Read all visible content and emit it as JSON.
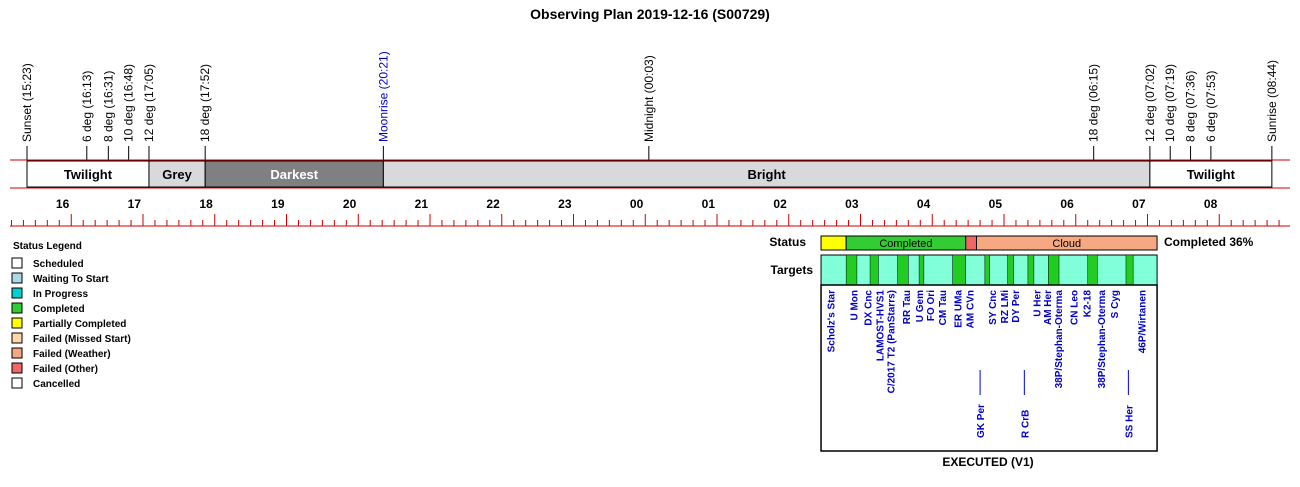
{
  "title": "Observing Plan 2019-12-16 (S00729)",
  "colors": {
    "red_line": "#cc0000",
    "twilight": "#ffffff",
    "grey": "#d9d9d9",
    "darkest": "#808080",
    "bright": "#d9d9d9",
    "moonrise_text": "#0000cc",
    "target_text": "#0000cc",
    "targets_band": "#80ffd9",
    "status_yellow": "#ffff00",
    "status_completed": "#33cc33",
    "status_cloud": "#f5a882",
    "status_other": "#ee6666",
    "target_bar": "#22cc22"
  },
  "events": [
    {
      "label": "Sunset (15:23)",
      "time": "15:23"
    },
    {
      "label": "6 deg (16:13)",
      "time": "16:13"
    },
    {
      "label": "8 deg (16:31)",
      "time": "16:31"
    },
    {
      "label": "10 deg (16:48)",
      "time": "16:48"
    },
    {
      "label": "12 deg (17:05)",
      "time": "17:05"
    },
    {
      "label": "18 deg (17:52)",
      "time": "17:52"
    },
    {
      "label": "Moonrise (20:21)",
      "time": "20:21",
      "highlight": true
    },
    {
      "label": "Midnight (00:03)",
      "time": "00:03"
    },
    {
      "label": "18 deg (06:15)",
      "time": "06:15"
    },
    {
      "label": "12 deg (07:02)",
      "time": "07:02"
    },
    {
      "label": "10 deg (07:19)",
      "time": "07:19"
    },
    {
      "label": "8 deg (07:36)",
      "time": "07:36"
    },
    {
      "label": "6 deg (07:53)",
      "time": "07:53"
    },
    {
      "label": "Sunrise (08:44)",
      "time": "08:44"
    }
  ],
  "bands": [
    {
      "label": "Twilight",
      "start": "15:23",
      "end": "17:05",
      "color": "twilight"
    },
    {
      "label": "Grey",
      "start": "17:05",
      "end": "17:52",
      "color": "grey"
    },
    {
      "label": "Darkest",
      "start": "17:52",
      "end": "20:21",
      "color": "darkest"
    },
    {
      "label": "Bright",
      "start": "20:21",
      "end": "07:02",
      "color": "bright"
    },
    {
      "label": "Twilight",
      "start": "07:02",
      "end": "08:44",
      "color": "twilight"
    }
  ],
  "hour_labels": [
    "16",
    "17",
    "18",
    "19",
    "20",
    "21",
    "22",
    "23",
    "00",
    "01",
    "02",
    "03",
    "04",
    "05",
    "06",
    "07",
    "08"
  ],
  "legend": {
    "title": "Status Legend",
    "items": [
      {
        "label": "Scheduled",
        "color": "#ffffff"
      },
      {
        "label": "Waiting To Start",
        "color": "#add8e6"
      },
      {
        "label": "In Progress",
        "color": "#00ced1"
      },
      {
        "label": "Completed",
        "color": "#33cc33"
      },
      {
        "label": "Partially Completed",
        "color": "#ffff00"
      },
      {
        "label": "Failed (Missed Start)",
        "color": "#ffd8a8"
      },
      {
        "label": "Failed (Weather)",
        "color": "#f5a882"
      },
      {
        "label": "Failed (Other)",
        "color": "#ee6666"
      },
      {
        "label": "Cancelled",
        "color": "#ffffff"
      }
    ]
  },
  "status": {
    "row_label": "Status",
    "targets_label": "Targets",
    "completed_pct": "Completed 36%",
    "executed_label": "EXECUTED (V1)",
    "segments": [
      {
        "start": "02:27",
        "end": "02:48",
        "color": "status_yellow",
        "label": ""
      },
      {
        "start": "02:48",
        "end": "04:28",
        "color": "status_completed",
        "label": "Completed"
      },
      {
        "start": "04:28",
        "end": "04:37",
        "color": "status_other",
        "label": ""
      },
      {
        "start": "04:37",
        "end": "07:08",
        "color": "status_cloud",
        "label": "Cloud"
      }
    ]
  },
  "targets": [
    {
      "name": "Scholz's Star",
      "at": "02:35",
      "row": "upper"
    },
    {
      "name": "U Mon",
      "at": "02:54",
      "row": "upper"
    },
    {
      "name": "DX Cnc",
      "at": "03:06",
      "row": "upper"
    },
    {
      "name": "LAMOST-HVS1",
      "at": "03:16",
      "row": "upper"
    },
    {
      "name": "C/2017 T2 (PanStarrs)",
      "at": "03:25",
      "row": "upper"
    },
    {
      "name": "RR Tau",
      "at": "03:38",
      "row": "upper"
    },
    {
      "name": "U Gem",
      "at": "03:49",
      "row": "upper"
    },
    {
      "name": "FO Ori",
      "at": "03:58",
      "row": "upper"
    },
    {
      "name": "CM Tau",
      "at": "04:08",
      "row": "upper"
    },
    {
      "name": "ER UMa",
      "at": "04:21",
      "row": "upper"
    },
    {
      "name": "AM CVn",
      "at": "04:31",
      "row": "upper"
    },
    {
      "name": "GK Per",
      "at": "04:40",
      "row": "lower"
    },
    {
      "name": "SY Cnc",
      "at": "04:50",
      "row": "upper"
    },
    {
      "name": "RZ LMi",
      "at": "05:00",
      "row": "upper"
    },
    {
      "name": "DY Per",
      "at": "05:09",
      "row": "upper"
    },
    {
      "name": "R CrB",
      "at": "05:17",
      "row": "lower"
    },
    {
      "name": "U Her",
      "at": "05:27",
      "row": "upper"
    },
    {
      "name": "AM Her",
      "at": "05:36",
      "row": "upper"
    },
    {
      "name": "38P/Stephan-Oterma",
      "at": "05:45",
      "row": "upper"
    },
    {
      "name": "CN Leo",
      "at": "05:58",
      "row": "upper"
    },
    {
      "name": "K2-18",
      "at": "06:09",
      "row": "upper"
    },
    {
      "name": "38P/Stephan-Oterma",
      "at": "06:21",
      "row": "upper"
    },
    {
      "name": "S Cyg",
      "at": "06:32",
      "row": "upper"
    },
    {
      "name": "SS Her",
      "at": "06:44",
      "row": "lower"
    },
    {
      "name": "46P/Wirtanen",
      "at": "06:55",
      "row": "upper"
    }
  ],
  "target_bars": [
    {
      "start": "02:48",
      "end": "02:57"
    },
    {
      "start": "03:08",
      "end": "03:15"
    },
    {
      "start": "03:31",
      "end": "03:40"
    },
    {
      "start": "03:49",
      "end": "03:53"
    },
    {
      "start": "04:17",
      "end": "04:28"
    },
    {
      "start": "04:44",
      "end": "04:48"
    },
    {
      "start": "05:03",
      "end": "05:08"
    },
    {
      "start": "05:20",
      "end": "05:25"
    },
    {
      "start": "05:37",
      "end": "05:46"
    },
    {
      "start": "06:10",
      "end": "06:18"
    },
    {
      "start": "06:42",
      "end": "06:48"
    }
  ]
}
